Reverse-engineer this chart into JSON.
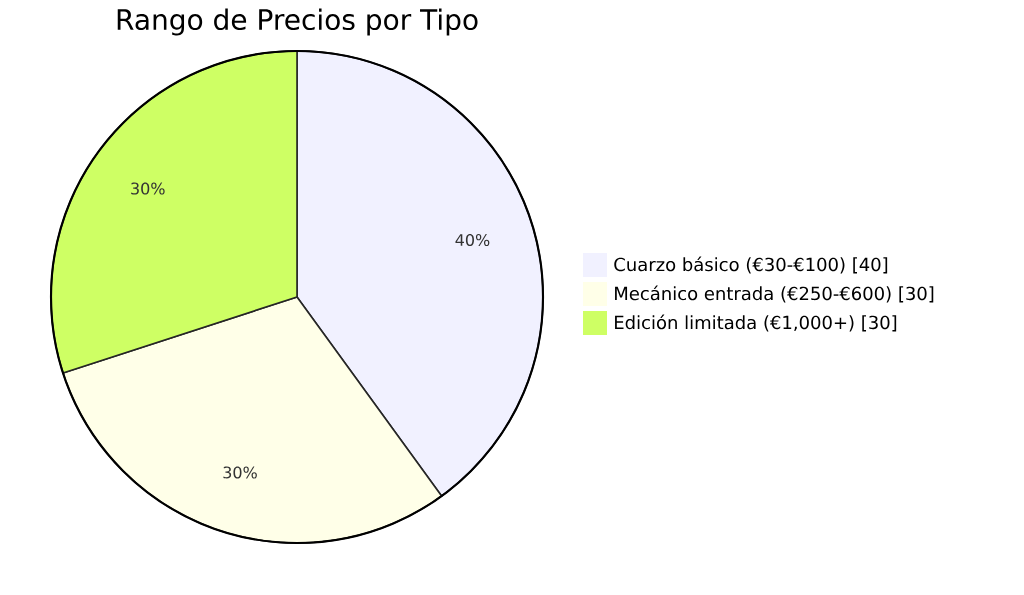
{
  "chart_data": {
    "type": "pie",
    "title": "Rango de Precios por Tipo",
    "categories": [
      "Cuarzo básico (€30-€100) [40]",
      "Mecánico entrada (€250-€600) [30]",
      "Edición limitada (€1,000+) [30]"
    ],
    "values": [
      40,
      30,
      30
    ],
    "value_labels": [
      "40%",
      "30%",
      "30%"
    ],
    "colors": [
      "#f1f1ff",
      "#ffffe8",
      "#ceff64"
    ],
    "legend": "right"
  }
}
